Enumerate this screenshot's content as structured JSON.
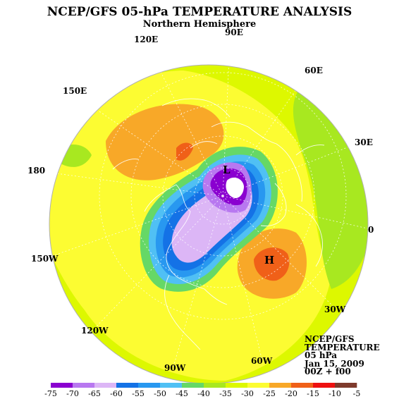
{
  "title": "NCEP/GFS 05-hPa TEMPERATURE ANALYSIS",
  "subtitle": "Northern Hemisphere",
  "longitude_labels": [
    "90E",
    "120E",
    "60E",
    "150E",
    "30E",
    "180",
    "0",
    "150W",
    "30W",
    "120W",
    "90W",
    "60W"
  ],
  "pressure_systems": {
    "low": "L",
    "high": "H"
  },
  "info_block": {
    "model": "NCEP/GFS",
    "field": "TEMPERATURE",
    "level": "05 hPa",
    "date": "Jan 15, 2009",
    "time": "00Z + f00"
  },
  "colorbar": {
    "tick_labels": [
      "-75",
      "-70",
      "-65",
      "-60",
      "-55",
      "-50",
      "-45",
      "-40",
      "-35",
      "-30",
      "-25",
      "-20",
      "-15",
      "-10",
      "-5"
    ],
    "colors": [
      "#8a00d0",
      "#b878f0",
      "#dcb6f6",
      "#1472e6",
      "#2898f0",
      "#50c0f4",
      "#66d866",
      "#a8e820",
      "#ddf800",
      "#fcfc32",
      "#f8a828",
      "#f06018",
      "#ee1010",
      "#7e3a2c",
      "#8c8c8c"
    ]
  },
  "palette": {
    "background": "#ffffff",
    "map_base": "#ddf800",
    "outer_band": "#fcfc32",
    "cold_core": "#8a00d0",
    "warm_core": "#f06018"
  }
}
